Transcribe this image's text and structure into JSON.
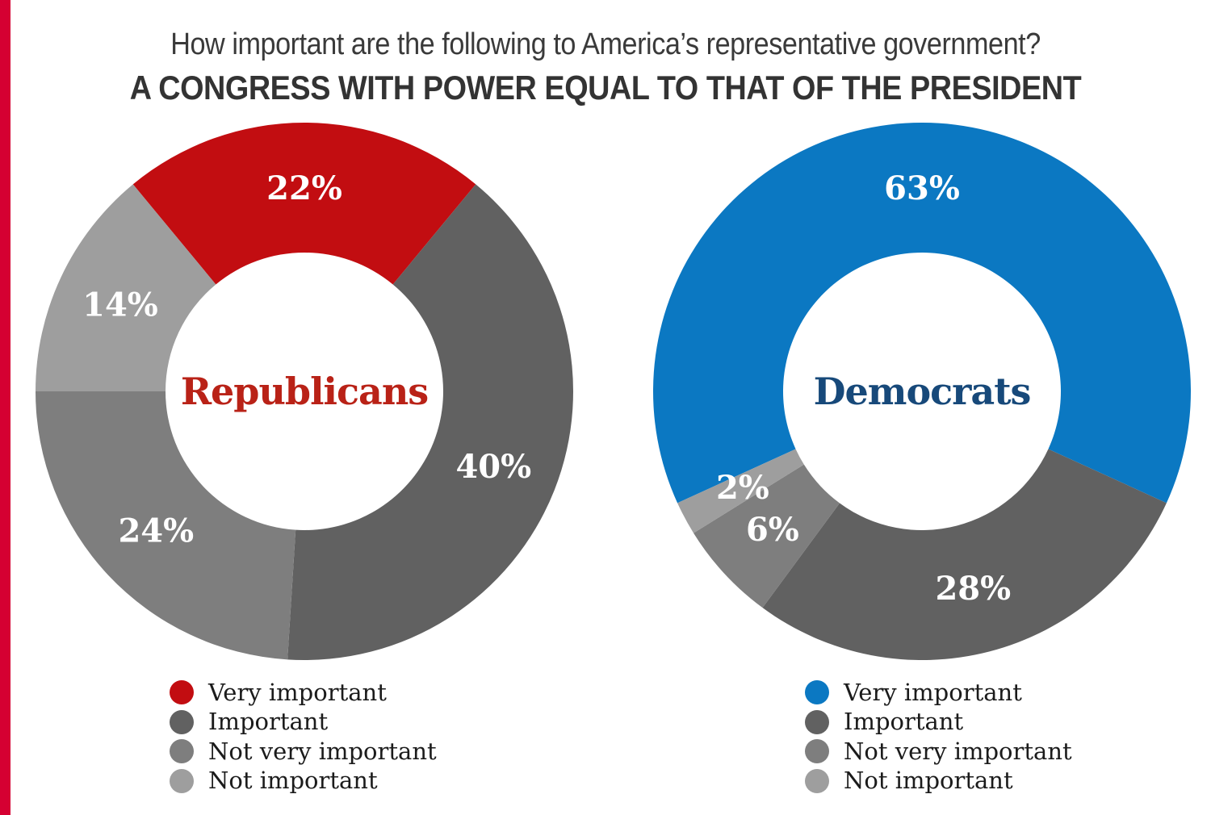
{
  "page": {
    "stripe_color": "#D50032",
    "background": "#FFFFFF"
  },
  "title": {
    "line1": "How important are the following to America’s representative government?",
    "line2": "A CONGRESS WITH POWER EQUAL TO THAT OF THE PRESIDENT"
  },
  "categories": [
    "Very important",
    "Important",
    "Not very important",
    "Not important"
  ],
  "chart_data": [
    {
      "type": "pie",
      "subtype": "donut",
      "center_label": "Republicans",
      "center_label_color": "#B92217",
      "categories": [
        "Very important",
        "Important",
        "Not very important",
        "Not important"
      ],
      "values": [
        22,
        40,
        24,
        14
      ],
      "labels": [
        "22%",
        "40%",
        "24%",
        "14%"
      ],
      "colors": [
        "#C20D11",
        "#616161",
        "#7E7E7E",
        "#9E9E9E"
      ],
      "label_color": "#FFFFFF",
      "layout": "first slice centered at 12 o'clock, clockwise",
      "legend_position": "below"
    },
    {
      "type": "pie",
      "subtype": "donut",
      "center_label": "Democrats",
      "center_label_color": "#17497A",
      "categories": [
        "Very important",
        "Important",
        "Not very important",
        "Not important"
      ],
      "values": [
        63,
        28,
        6,
        2
      ],
      "labels": [
        "63%",
        "28%",
        "6%",
        "2%"
      ],
      "colors": [
        "#0B78C2",
        "#616161",
        "#7E7E7E",
        "#9E9E9E"
      ],
      "label_color": "#FFFFFF",
      "layout": "first slice centered at 12 o'clock, clockwise",
      "legend_position": "below"
    }
  ]
}
